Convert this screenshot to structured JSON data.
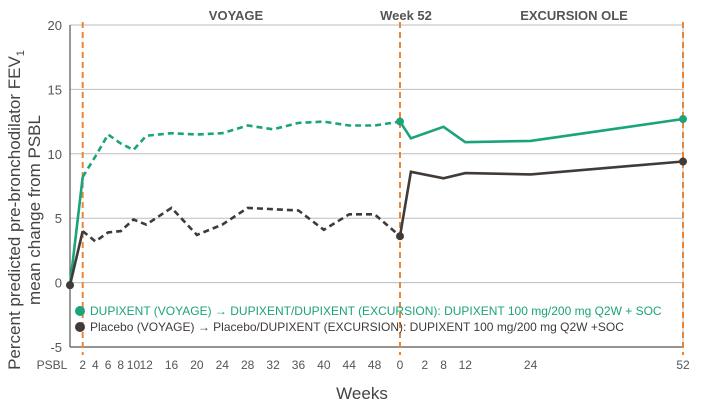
{
  "chart_data": {
    "type": "line",
    "ylabel_line1": "Percent predicted pre-bronchodilator FEV",
    "ylabel_sub": "1",
    "ylabel_line2": "mean change from PSBL",
    "xlabel": "Weeks",
    "ylim": [
      -5,
      20
    ],
    "yticks": [
      -5,
      0,
      5,
      10,
      15,
      20
    ],
    "grid": "horizontal",
    "period_labels": [
      "VOYAGE",
      "Week 52",
      "EXCURSION OLE"
    ],
    "voyage_ticks": [
      "PSBL",
      "2",
      "4",
      "6",
      "8",
      "10",
      "12",
      "16",
      "20",
      "24",
      "28",
      "32",
      "36",
      "40",
      "44",
      "48",
      "0"
    ],
    "voyage_tick_weeks": [
      0,
      2,
      4,
      6,
      8,
      10,
      12,
      16,
      20,
      24,
      28,
      32,
      36,
      40,
      44,
      48,
      52
    ],
    "excursion_ticks": [
      "2",
      "8",
      "12",
      "24",
      "52"
    ],
    "excursion_tick_weeks": [
      2,
      8,
      12,
      24,
      52
    ],
    "series": [
      {
        "name": "DUPIXENT (VOYAGE) → DUPIXENT/DUPIXENT (EXCURSION): DUPIXENT 100 mg/200 mg Q2W + SOC",
        "legend_parts": [
          "DUPIXENT (VOYAGE)",
          "→",
          "DUPIXENT/DUPIXENT (EXCURSION): DUPIXENT 100 mg/200 mg Q2W + SOC"
        ],
        "color": "#1ba37b",
        "voyage": {
          "x": [
            0,
            2,
            4,
            6,
            8,
            10,
            12,
            16,
            20,
            24,
            28,
            32,
            36,
            40,
            44,
            48,
            52
          ],
          "y": [
            -0.2,
            8.2,
            9.8,
            11.5,
            10.8,
            10.3,
            11.4,
            11.6,
            11.5,
            11.6,
            12.2,
            11.9,
            12.4,
            12.5,
            12.2,
            12.2,
            12.5
          ]
        },
        "excursion": {
          "x": [
            0,
            2,
            8,
            12,
            24,
            52
          ],
          "y": [
            12.5,
            11.2,
            12.1,
            10.9,
            11.0,
            12.7
          ]
        }
      },
      {
        "name": "Placebo (VOYAGE) → Placebo/DUPIXENT (EXCURSION): DUPIXENT 100 mg/200 mg Q2W +SOC",
        "legend_parts": [
          "Placebo (VOYAGE)",
          "→",
          "Placebo/DUPIXENT (EXCURSION): DUPIXENT 100 mg/200 mg Q2W +SOC"
        ],
        "color": "#413b38",
        "voyage": {
          "x": [
            0,
            2,
            4,
            6,
            8,
            10,
            12,
            16,
            20,
            24,
            28,
            32,
            36,
            40,
            44,
            48,
            52
          ],
          "y": [
            -0.2,
            4.0,
            3.2,
            3.9,
            4.0,
            4.9,
            4.5,
            5.8,
            3.7,
            4.5,
            5.8,
            5.7,
            5.6,
            4.1,
            5.3,
            5.3,
            3.6
          ]
        },
        "excursion": {
          "x": [
            0,
            2,
            8,
            12,
            24,
            52
          ],
          "y": [
            3.6,
            8.6,
            8.1,
            8.5,
            8.4,
            9.4
          ]
        }
      }
    ]
  }
}
